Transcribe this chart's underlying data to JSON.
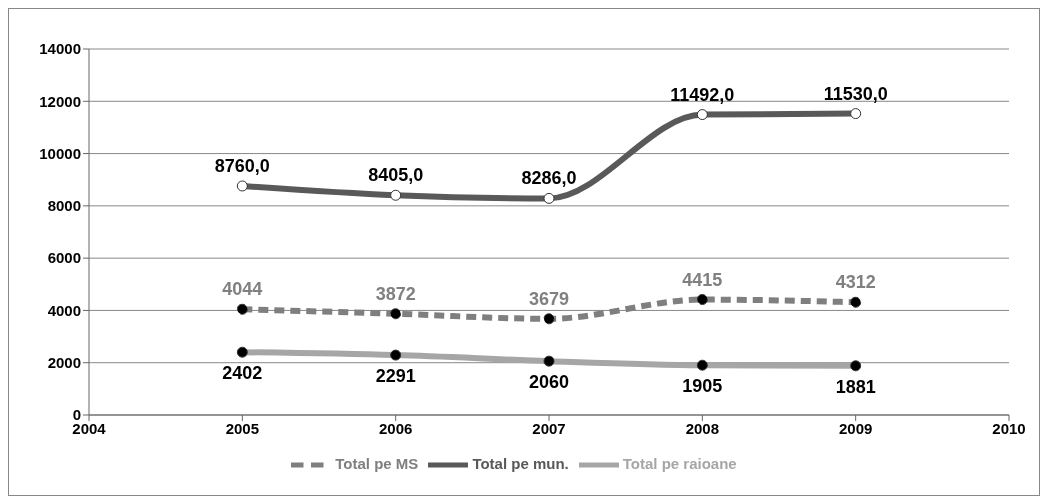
{
  "chart_data": {
    "type": "line",
    "x": [
      2005,
      2006,
      2007,
      2008,
      2009
    ],
    "xlim": [
      2004,
      2010
    ],
    "xticks": [
      2004,
      2005,
      2006,
      2007,
      2008,
      2009,
      2010
    ],
    "ylim": [
      0,
      14000
    ],
    "yticks": [
      0,
      2000,
      4000,
      6000,
      8000,
      10000,
      12000,
      14000
    ],
    "grid": "y",
    "legend": "bottom",
    "marker": "circle",
    "series": [
      {
        "name": "Total pe mun.",
        "color": "#595959",
        "line_style": "solid",
        "values": [
          8760,
          8405,
          8286,
          11492,
          11530
        ],
        "value_labels": [
          "8760,0",
          "8405,0",
          "8286,0",
          "11492,0",
          "11530,0"
        ]
      },
      {
        "name": "Total pe raioane",
        "color": "#a6a6a6",
        "line_style": "solid",
        "values": [
          2402,
          2291,
          2060,
          1905,
          1881
        ],
        "value_labels": [
          "2402",
          "2291",
          "2060",
          "1905",
          "1881"
        ]
      },
      {
        "name": "Total pe MS",
        "color": "#7f7f7f",
        "line_style": "dashed",
        "values": [
          4044,
          3872,
          3679,
          4415,
          4312
        ],
        "value_labels": [
          "4044",
          "3872",
          "3679",
          "4415",
          "4312"
        ]
      }
    ]
  }
}
